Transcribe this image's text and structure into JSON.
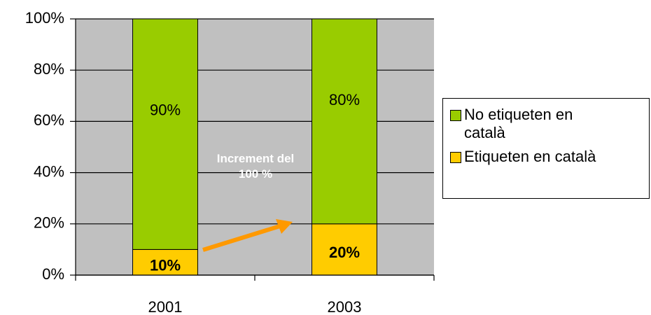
{
  "chart_data": {
    "type": "stacked_bar",
    "categories": [
      "2001",
      "2003"
    ],
    "series": [
      {
        "name": "Etiqueten en català",
        "color": "#ffcc00",
        "values": [
          10,
          20
        ],
        "value_labels": [
          "10%",
          "20%"
        ],
        "label_bold": true
      },
      {
        "name": "No etiqueten en català",
        "color": "#99cc00",
        "values": [
          90,
          80
        ],
        "value_labels": [
          "90%",
          "80%"
        ],
        "label_bold": false
      }
    ],
    "ylim": [
      0,
      100
    ],
    "yticks": [
      {
        "value": 0,
        "label": "0%"
      },
      {
        "value": 20,
        "label": "20%"
      },
      {
        "value": 40,
        "label": "40%"
      },
      {
        "value": 60,
        "label": "60%"
      },
      {
        "value": 80,
        "label": "80%"
      },
      {
        "value": 100,
        "label": "100%"
      }
    ],
    "grid": true,
    "annotation": "Increment del 100 %",
    "legend": "right"
  }
}
